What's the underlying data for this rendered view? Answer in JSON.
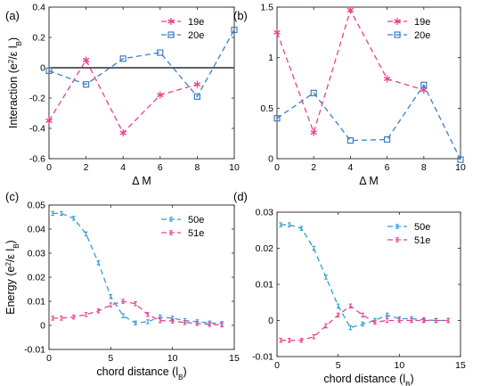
{
  "chart_data": [
    {
      "id": "a",
      "panel_label": "(a)",
      "type": "line",
      "xlabel": "Δ M",
      "ylabel": "Interaction (e²/ε l_B)",
      "xlim": [
        0,
        10
      ],
      "ylim": [
        -0.6,
        0.4
      ],
      "xticks": [
        0,
        2,
        4,
        6,
        8,
        10
      ],
      "yticks": [
        -0.6,
        -0.4,
        -0.2,
        0,
        0.2,
        0.4
      ],
      "xtick_labels": [
        "0",
        "2",
        "4",
        "6",
        "8",
        "10"
      ],
      "ytick_labels": [
        "-0.6",
        "-0.4",
        "-0.2",
        "0",
        "0.2",
        "0.4"
      ],
      "zero_line": true,
      "legend_position": "top-right",
      "series": [
        {
          "name": "19e",
          "color": "#e8408a",
          "marker": "asterisk",
          "x": [
            0,
            2,
            4,
            6,
            8
          ],
          "y": [
            -0.35,
            0.05,
            -0.43,
            -0.18,
            -0.11
          ]
        },
        {
          "name": "20e",
          "color": "#3d7ec2",
          "marker": "square",
          "x": [
            0,
            2,
            4,
            6,
            8,
            10
          ],
          "y": [
            -0.02,
            -0.11,
            0.06,
            0.1,
            -0.19,
            0.25
          ]
        }
      ]
    },
    {
      "id": "b",
      "panel_label": "(b)",
      "type": "line",
      "xlabel": "Δ M",
      "ylabel": "",
      "xlim": [
        0,
        10
      ],
      "ylim": [
        0,
        1.5
      ],
      "xticks": [
        0,
        2,
        4,
        6,
        8,
        10
      ],
      "yticks": [
        0,
        0.5,
        1,
        1.5
      ],
      "xtick_labels": [
        "0",
        "2",
        "4",
        "6",
        "8",
        "10"
      ],
      "ytick_labels": [
        "0",
        "0.5",
        "1",
        "1.5"
      ],
      "zero_line": false,
      "legend_position": "top-right",
      "series": [
        {
          "name": "19e",
          "color": "#e8408a",
          "marker": "asterisk",
          "x": [
            0,
            2,
            4,
            6,
            8
          ],
          "y": [
            1.25,
            0.26,
            1.47,
            0.79,
            0.68
          ]
        },
        {
          "name": "20e",
          "color": "#3d7ec2",
          "marker": "square",
          "x": [
            0,
            2,
            4,
            6,
            8,
            10
          ],
          "y": [
            0.4,
            0.65,
            0.18,
            0.19,
            0.73,
            -0.01
          ]
        }
      ]
    },
    {
      "id": "c",
      "panel_label": "(c)",
      "type": "line",
      "xlabel": "chord distance (l_B)",
      "ylabel": "Energy (e²/ε l_B)",
      "xlim": [
        0,
        15
      ],
      "ylim": [
        -0.01,
        0.05
      ],
      "xticks": [
        0,
        5,
        10,
        15
      ],
      "yticks": [
        -0.01,
        0,
        0.01,
        0.02,
        0.03,
        0.04,
        0.05
      ],
      "xtick_labels": [
        "0",
        "5",
        "10",
        "15"
      ],
      "ytick_labels": [
        "-0.01",
        "0",
        "0.01",
        "0.02",
        "0.03",
        "0.04",
        "0.05"
      ],
      "zero_line": false,
      "legend_position": "top-right",
      "series": [
        {
          "name": "50e",
          "color": "#2c9fd8",
          "marker": "errorbar",
          "x": [
            0.3,
            1.0,
            2.0,
            3.0,
            4.0,
            5.0,
            6.0,
            7.0,
            8.0,
            9.0,
            10.0,
            11.0,
            12.0,
            13.0,
            14.0
          ],
          "y": [
            0.0465,
            0.0465,
            0.0445,
            0.038,
            0.026,
            0.012,
            0.004,
            0.001,
            0.0015,
            0.0035,
            0.003,
            0.002,
            0.0015,
            0.001,
            0.0008
          ]
        },
        {
          "name": "51e",
          "color": "#e0468e",
          "marker": "errorbar",
          "x": [
            0.3,
            1.0,
            2.0,
            3.0,
            4.0,
            5.0,
            6.0,
            7.0,
            8.0,
            9.0,
            10.0,
            11.0,
            12.0,
            13.0,
            14.0
          ],
          "y": [
            0.003,
            0.003,
            0.0035,
            0.0045,
            0.006,
            0.0085,
            0.01,
            0.009,
            0.0045,
            0.002,
            0.0018,
            0.0012,
            0.0008,
            0.0004,
            0.0002
          ]
        }
      ]
    },
    {
      "id": "d",
      "panel_label": "(d)",
      "type": "line",
      "xlabel": "chord distance (l_B)",
      "ylabel": "",
      "xlim": [
        0,
        15
      ],
      "ylim": [
        -0.01,
        0.03
      ],
      "xticks": [
        0,
        5,
        10,
        15
      ],
      "yticks": [
        -0.01,
        0,
        0.01,
        0.02,
        0.03
      ],
      "xtick_labels": [
        "0",
        "5",
        "10",
        "15"
      ],
      "ytick_labels": [
        "-0.01",
        "0",
        "0.01",
        "0.02",
        "0.03"
      ],
      "zero_line": false,
      "legend_position": "top-right",
      "series": [
        {
          "name": "50e",
          "color": "#2c9fd8",
          "marker": "errorbar",
          "x": [
            0.3,
            1.0,
            2.0,
            3.0,
            4.0,
            5.0,
            6.0,
            7.0,
            8.0,
            9.0,
            10.0,
            11.0,
            12.0,
            13.0,
            14.0
          ],
          "y": [
            0.0265,
            0.0265,
            0.0255,
            0.02,
            0.012,
            0.004,
            -0.002,
            -0.001,
            0.0,
            0.0015,
            0.0005,
            0.0005,
            0.0002,
            0.0,
            0.0
          ]
        },
        {
          "name": "51e",
          "color": "#e0468e",
          "marker": "errorbar",
          "x": [
            0.3,
            1.0,
            2.0,
            3.0,
            4.0,
            5.0,
            6.0,
            7.0,
            8.0,
            9.0,
            10.0,
            11.0,
            12.0,
            13.0,
            14.0
          ],
          "y": [
            -0.0055,
            -0.0055,
            -0.0055,
            -0.0045,
            -0.0015,
            0.0015,
            0.004,
            0.0015,
            -0.0005,
            0.0,
            0.0,
            0.0,
            0.0,
            0.0,
            0.0
          ]
        }
      ]
    }
  ]
}
